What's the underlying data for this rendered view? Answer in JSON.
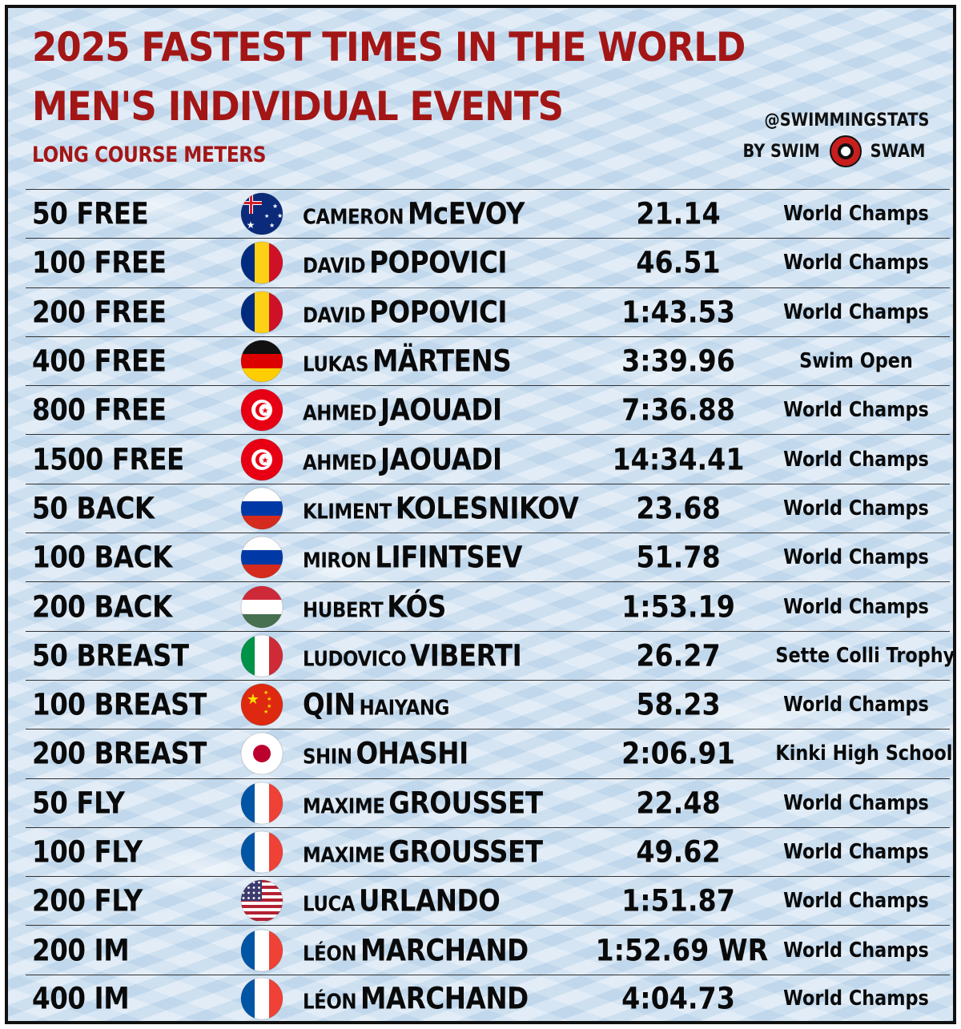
{
  "header": {
    "title_line1": "2025 FASTEST TIMES IN THE WORLD",
    "title_line2": "MEN'S INDIVIDUAL EVENTS",
    "subtitle": "LONG COURSE METERS",
    "handle": "@SWIMMINGSTATS",
    "by_prefix": "BY SWIM",
    "by_suffix": "SWAM"
  },
  "rows": [
    {
      "event": "50 FREE",
      "country": "AUS",
      "first": "CAMERON",
      "last": "McEVOY",
      "order": "first-last",
      "time": "21.14",
      "meet": "World Champs"
    },
    {
      "event": "100 FREE",
      "country": "ROU",
      "first": "DAVID",
      "last": "POPOVICI",
      "order": "first-last",
      "time": "46.51",
      "meet": "World Champs"
    },
    {
      "event": "200 FREE",
      "country": "ROU",
      "first": "DAVID",
      "last": "POPOVICI",
      "order": "first-last",
      "time": "1:43.53",
      "meet": "World Champs"
    },
    {
      "event": "400 FREE",
      "country": "GER",
      "first": "LUKAS",
      "last": "MÄRTENS",
      "order": "first-last",
      "time": "3:39.96",
      "meet": "Swim Open"
    },
    {
      "event": "800 FREE",
      "country": "TUN",
      "first": "AHMED",
      "last": "JAOUADI",
      "order": "first-last",
      "time": "7:36.88",
      "meet": "World Champs"
    },
    {
      "event": "1500 FREE",
      "country": "TUN",
      "first": "AHMED",
      "last": "JAOUADI",
      "order": "first-last",
      "time": "14:34.41",
      "meet": "World Champs"
    },
    {
      "event": "50 BACK",
      "country": "RUS",
      "first": "KLIMENT",
      "last": "KOLESNIKOV",
      "order": "first-last",
      "time": "23.68",
      "meet": "World Champs"
    },
    {
      "event": "100 BACK",
      "country": "RUS",
      "first": "MIRON",
      "last": "LIFINTSEV",
      "order": "first-last",
      "time": "51.78",
      "meet": "World Champs"
    },
    {
      "event": "200 BACK",
      "country": "HUN",
      "first": "HUBERT",
      "last": "KÓS",
      "order": "first-last",
      "time": "1:53.19",
      "meet": "World Champs"
    },
    {
      "event": "50 BREAST",
      "country": "ITA",
      "first": "LUDOVICO",
      "last": "VIBERTI",
      "order": "first-last",
      "time": "26.27",
      "meet": "Sette Colli Trophy"
    },
    {
      "event": "100 BREAST",
      "country": "CHN",
      "first": "HAIYANG",
      "last": "QIN",
      "order": "last-first",
      "time": "58.23",
      "meet": "World Champs"
    },
    {
      "event": "200 BREAST",
      "country": "JPN",
      "first": "SHIN",
      "last": "OHASHI",
      "order": "first-last",
      "time": "2:06.91",
      "meet": "Kinki High School"
    },
    {
      "event": "50 FLY",
      "country": "FRA",
      "first": "MAXIME",
      "last": "GROUSSET",
      "order": "first-last",
      "time": "22.48",
      "meet": "World Champs"
    },
    {
      "event": "100 FLY",
      "country": "FRA",
      "first": "MAXIME",
      "last": "GROUSSET",
      "order": "first-last",
      "time": "49.62",
      "meet": "World Champs"
    },
    {
      "event": "200 FLY",
      "country": "USA",
      "first": "LUCA",
      "last": "URLANDO",
      "order": "first-last",
      "time": "1:51.87",
      "meet": "World Champs"
    },
    {
      "event": "200 IM",
      "country": "FRA",
      "first": "LÉON",
      "last": "MARCHAND",
      "order": "first-last",
      "time": "1:52.69 WR",
      "meet": "World Champs"
    },
    {
      "event": "400 IM",
      "country": "FRA",
      "first": "LÉON",
      "last": "MARCHAND",
      "order": "first-last",
      "time": "4:04.73",
      "meet": "World Champs"
    }
  ],
  "colors": {
    "title": "#a31616",
    "text": "#0a0a0a"
  }
}
